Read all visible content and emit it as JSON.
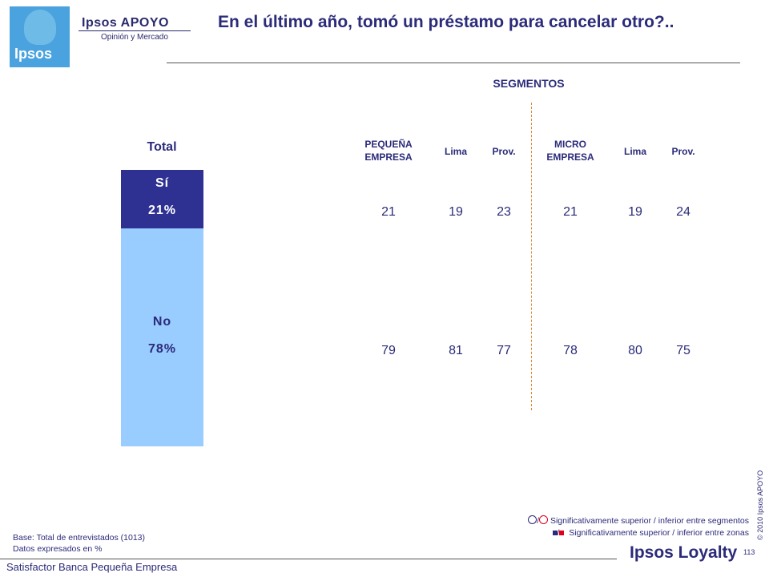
{
  "brand": {
    "logo_text": "Ipsos",
    "name": "Ipsos APOYO",
    "subtitle": "Opinión y Mercado"
  },
  "title": "En el último año, tomó un préstamo para cancelar otro?..",
  "chart_data": [
    {
      "type": "bar",
      "title": "Total",
      "stacked": true,
      "categories": [
        "Total"
      ],
      "series": [
        {
          "name": "Sí",
          "label": "21%",
          "value": 21,
          "color": "#2e3192"
        },
        {
          "name": "No",
          "label": "78%",
          "value": 78,
          "color": "#99ccff"
        }
      ]
    },
    {
      "type": "table",
      "title": "SEGMENTOS",
      "columns": [
        {
          "header": "PEQUEÑA EMPRESA",
          "si": "21",
          "no": "79"
        },
        {
          "header": "Lima",
          "si": "19",
          "no": "81"
        },
        {
          "header": "Prov.",
          "si": "23",
          "no": "77"
        },
        {
          "header": "MICRO EMPRESA",
          "si": "21",
          "no": "78"
        },
        {
          "header": "Lima",
          "si": "19",
          "no": "80"
        },
        {
          "header": "Prov.",
          "si": "24",
          "no": "75"
        }
      ]
    }
  ],
  "legend": {
    "segments_text": "Significativamente superior / inferior entre segmentos",
    "zones_text": "Significativamente superior / inferior entre zonas",
    "separator": "/"
  },
  "base_note": "Base: Total de entrevistados (1013)",
  "data_note": "Datos expresados en %",
  "footer": "Satisfactor Banca Pequeña Empresa",
  "loyalty_brand": "Ipsos Loyalty",
  "page_number": "113",
  "copyright": "© 2010 Ipsos APOYO",
  "colors": {
    "primary": "#2b2b7a",
    "si_bar": "#2e3192",
    "no_bar": "#99ccff",
    "divider": "#d88a3a",
    "red": "#e0001b"
  }
}
